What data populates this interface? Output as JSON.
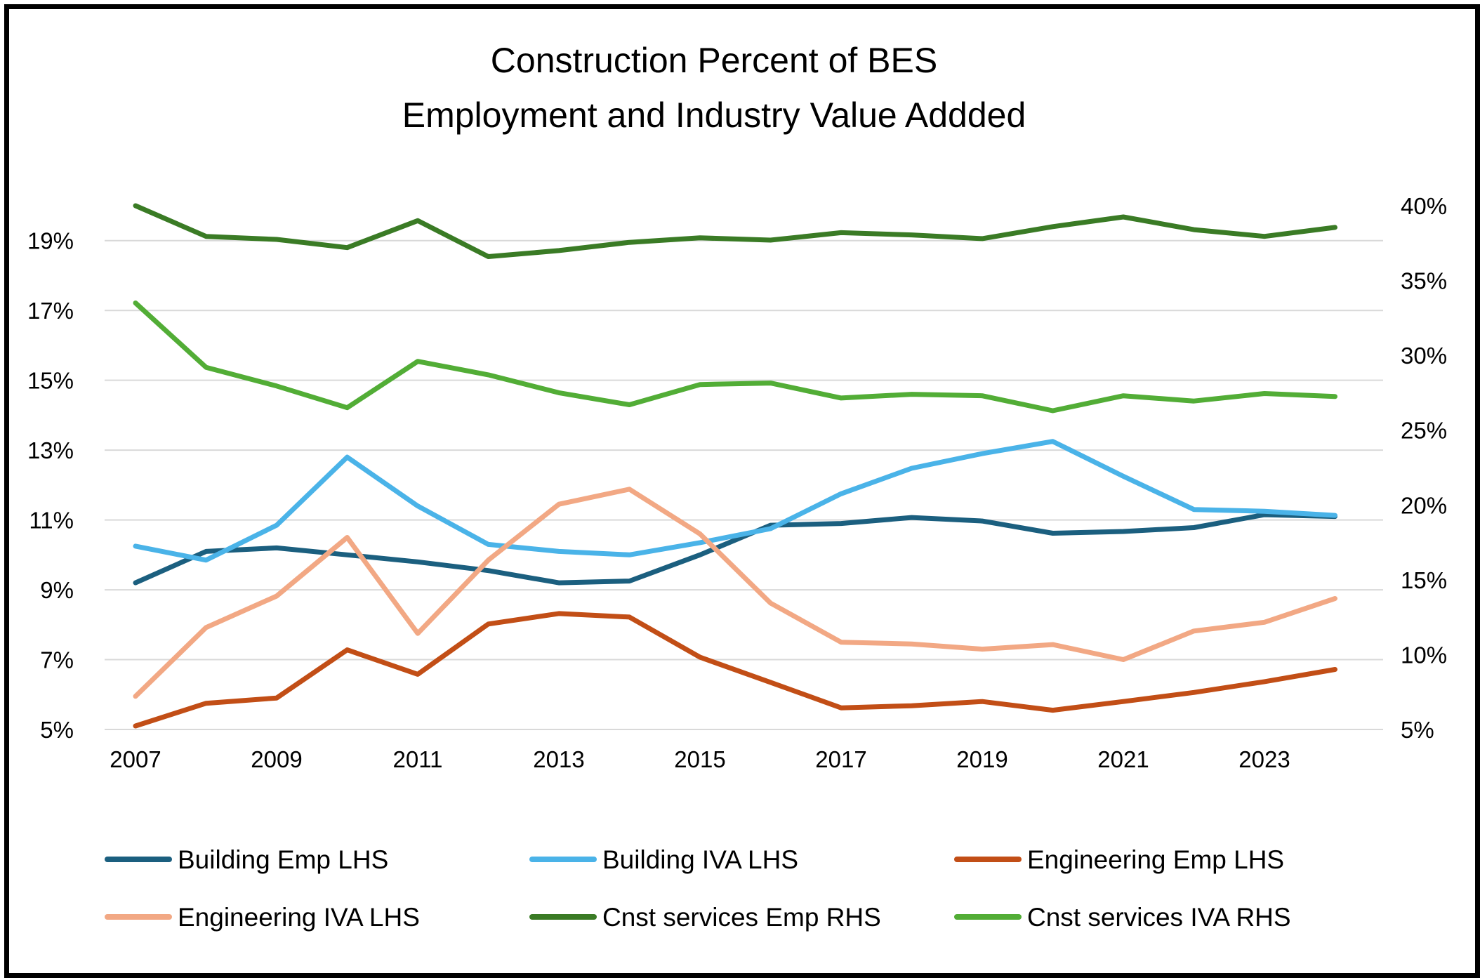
{
  "chart_data": {
    "type": "line",
    "title": [
      "Construction Percent of BES",
      "Employment and Industry Value Addded"
    ],
    "x": [
      2007,
      2008,
      2009,
      2010,
      2011,
      2012,
      2013,
      2014,
      2015,
      2016,
      2017,
      2018,
      2019,
      2020,
      2021,
      2022,
      2023,
      2024
    ],
    "x_tick_labels": [
      "2007",
      "2009",
      "2011",
      "2013",
      "2015",
      "2017",
      "2019",
      "2021",
      "2023"
    ],
    "y_left": {
      "range": [
        5,
        20
      ],
      "tick_values": [
        5,
        7,
        9,
        11,
        13,
        15,
        17,
        19
      ],
      "tick_labels": [
        "5%",
        "7%",
        "9%",
        "11%",
        "13%",
        "15%",
        "17%",
        "19%"
      ]
    },
    "y_right": {
      "range": [
        5,
        40
      ],
      "tick_values": [
        5,
        10,
        15,
        20,
        25,
        30,
        35,
        40
      ],
      "tick_labels": [
        "5%",
        "10%",
        "15%",
        "20%",
        "25%",
        "30%",
        "35%",
        "40%"
      ]
    },
    "grid": true,
    "legend_position": "bottom",
    "series": [
      {
        "name": "Building Emp LHS",
        "axis": "left",
        "color": "#1b5f7f",
        "values": [
          9.2,
          10.1,
          10.2,
          10.0,
          9.8,
          9.55,
          9.2,
          9.25,
          10.0,
          10.85,
          10.9,
          11.07,
          10.97,
          10.62,
          10.67,
          10.78,
          11.15,
          11.1
        ]
      },
      {
        "name": "Building IVA LHS",
        "axis": "left",
        "color": "#4ab3e8",
        "values": [
          10.25,
          9.85,
          10.85,
          12.8,
          11.4,
          10.3,
          10.1,
          10.0,
          10.35,
          10.75,
          11.75,
          12.48,
          12.9,
          13.25,
          12.25,
          11.3,
          11.25,
          11.13
        ]
      },
      {
        "name": "Engineering Emp LHS",
        "axis": "left",
        "color": "#c24e16",
        "values": [
          5.1,
          5.75,
          5.9,
          7.28,
          6.58,
          8.02,
          8.32,
          8.22,
          7.07,
          6.35,
          5.62,
          5.68,
          5.8,
          5.55,
          5.8,
          6.06,
          6.37,
          6.72
        ]
      },
      {
        "name": "Engineering IVA LHS",
        "axis": "left",
        "color": "#f2a884",
        "values": [
          5.95,
          7.92,
          8.82,
          10.5,
          7.75,
          9.85,
          11.45,
          11.88,
          10.6,
          8.62,
          7.5,
          7.45,
          7.3,
          7.43,
          7.0,
          7.82,
          8.07,
          8.75
        ]
      },
      {
        "name": "Cnst  services Emp RHS",
        "axis": "right",
        "color": "#3a7b25",
        "values": [
          40.0,
          37.95,
          37.75,
          37.2,
          39.0,
          36.6,
          37.0,
          37.55,
          37.85,
          37.7,
          38.2,
          38.05,
          37.8,
          38.6,
          39.25,
          38.4,
          37.95,
          38.55
        ]
      },
      {
        "name": "Cnst services IVA RHS",
        "axis": "right",
        "color": "#52ad36",
        "values": [
          33.5,
          29.2,
          27.95,
          26.5,
          29.6,
          28.7,
          27.5,
          26.7,
          28.05,
          28.15,
          27.15,
          27.4,
          27.3,
          26.3,
          27.3,
          26.95,
          27.45,
          27.25
        ]
      }
    ]
  }
}
